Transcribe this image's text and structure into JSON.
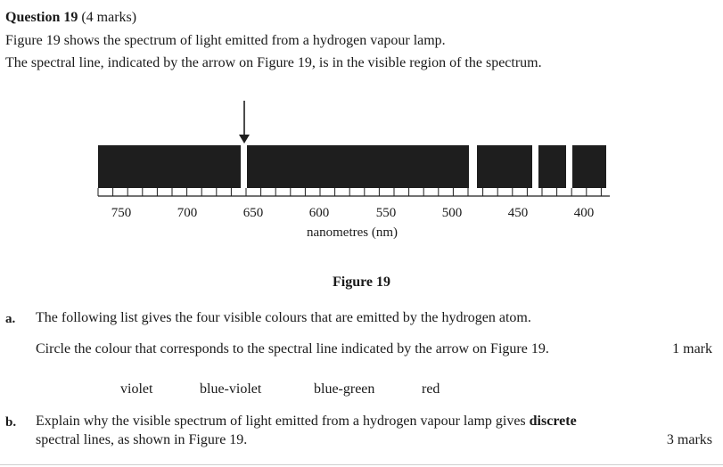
{
  "question": {
    "label": "Question 19",
    "marks": "(4 marks)",
    "intro_line1": "Figure 19 shows the spectrum of light emitted from a hydrogen vapour lamp.",
    "intro_line2": "The spectral line, indicated by the arrow on Figure 19, is in the visible region of the spectrum."
  },
  "figure": {
    "caption": "Figure 19",
    "axis_label": "nanometres (nm)",
    "tick_labels": [
      "750",
      "700",
      "650",
      "600",
      "550",
      "500",
      "450",
      "400"
    ],
    "bar_color": "#1e1e1e"
  },
  "part_a": {
    "letter": "a.",
    "line1": "The following list gives the four visible colours that are emitted by the hydrogen atom.",
    "line2": "Circle the colour that corresponds to the spectral line indicated by the arrow on Figure 19.",
    "marks": "1 mark",
    "colours": [
      "violet",
      "blue-violet",
      "blue-green",
      "red"
    ]
  },
  "part_b": {
    "letter": "b.",
    "line1_pre": "Explain why the visible spectrum of light emitted from a hydrogen vapour lamp gives ",
    "line1_bold": "discrete",
    "line2": "spectral lines, as shown in Figure 19.",
    "marks": "3 marks"
  }
}
